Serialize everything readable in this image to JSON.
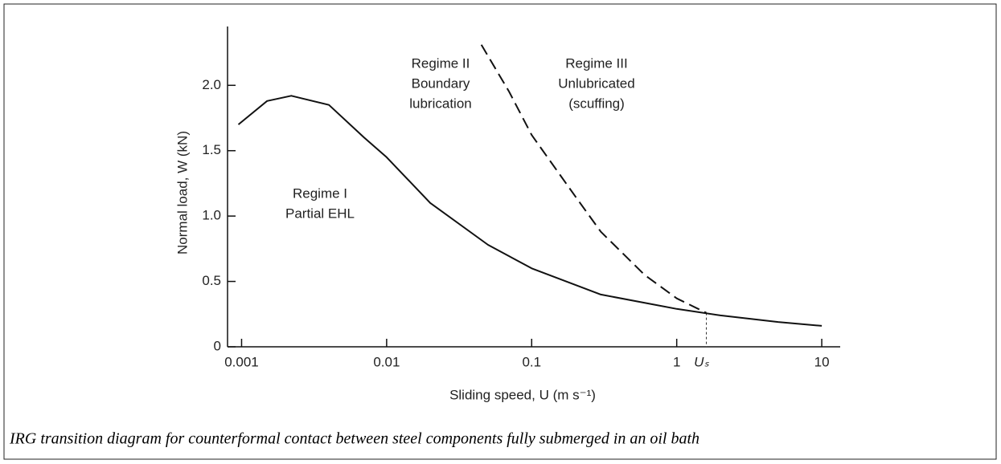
{
  "chart_data": {
    "type": "line",
    "caption": "IRG transition diagram for counterformal contact between steel components fully submerged in an oil bath",
    "xlabel": "Sliding speed, U (m s⁻¹)",
    "ylabel": "Normal load, W (kN)",
    "xscale": "log",
    "xlim": [
      0.0008,
      13.4
    ],
    "ylim": [
      0,
      2.45
    ],
    "xticks": [
      0.001,
      0.01,
      0.1,
      1,
      10,
      {
        "value": 1.6,
        "label": "Uₛ"
      }
    ],
    "yticks": [
      0,
      0.5,
      {
        "value": 1,
        "label": "1.0"
      },
      1.5,
      {
        "value": 2,
        "label": "2.0"
      }
    ],
    "series": [
      {
        "style": "solid",
        "color": "#111111",
        "x": [
          0.00095,
          0.0015,
          0.0022,
          0.004,
          0.007,
          0.01,
          0.02,
          0.05,
          0.1,
          0.3,
          1,
          2,
          5,
          10
        ],
        "values": [
          1.7,
          1.88,
          1.92,
          1.85,
          1.6,
          1.45,
          1.1,
          0.78,
          0.6,
          0.4,
          0.29,
          0.24,
          0.19,
          0.16
        ]
      },
      {
        "style": "dashed",
        "color": "#111111",
        "x": [
          0.045,
          0.07,
          0.1,
          0.2,
          0.3,
          0.6,
          1,
          1.6
        ],
        "values": [
          2.31,
          1.95,
          1.62,
          1.15,
          0.88,
          0.55,
          0.37,
          0.26
        ]
      }
    ],
    "annotations": [
      {
        "lines": [
          "Regime I",
          "Partial EHL"
        ]
      },
      {
        "lines": [
          "Regime II",
          "Boundary",
          "lubrication"
        ]
      },
      {
        "lines": [
          "Regime III",
          "Unlubricated",
          "(scuffing)"
        ]
      }
    ]
  }
}
